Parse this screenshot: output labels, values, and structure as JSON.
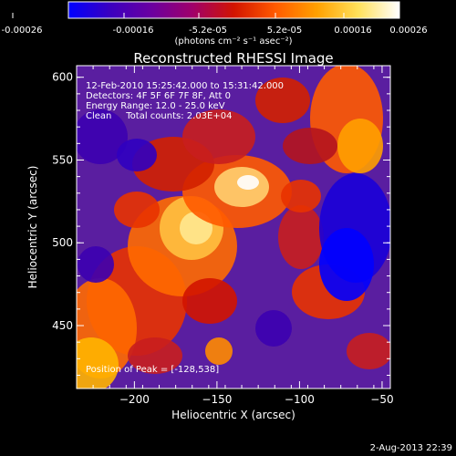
{
  "colorbar": {
    "ticks": [
      "-0.00026",
      "-0.00016",
      "-5.2e-05",
      "5.2e-05",
      "0.00016",
      "0.00026"
    ],
    "unit_label": "(photons cm⁻² s⁻¹ asec⁻²)",
    "colors": [
      "#0000ff",
      "#3a00c0",
      "#6a00a0",
      "#a0006a",
      "#d21400",
      "#ff5a00",
      "#ffa000",
      "#ffe15a",
      "#ffffff"
    ]
  },
  "chart_data": {
    "type": "heatmap",
    "title": "Reconstructed RHESSI Image",
    "xlabel": "Heliocentric X (arcsec)",
    "ylabel": "Heliocentric Y (arcsec)",
    "xlim": [
      -235,
      -45
    ],
    "ylim": [
      412,
      607
    ],
    "xticks": [
      -200,
      -150,
      -100,
      -50
    ],
    "yticks": [
      450,
      500,
      550,
      600
    ],
    "peak": [
      -128,
      538
    ],
    "zlim": [
      -0.00026,
      0.00026
    ]
  },
  "annotations": {
    "line1": "12-Feb-2010 15:25:42.000 to 15:31:42.000",
    "line2": "Detectors: 4F 5F 6F 7F 8F, Att 0",
    "line3": "Energy Range: 12.0 - 25.0 keV",
    "line4": "Clean     Total counts: 2.03E+04",
    "peak_text": "Position of Peak = [-128,538]"
  },
  "footer": {
    "date": "2-Aug-2013 22:39"
  }
}
